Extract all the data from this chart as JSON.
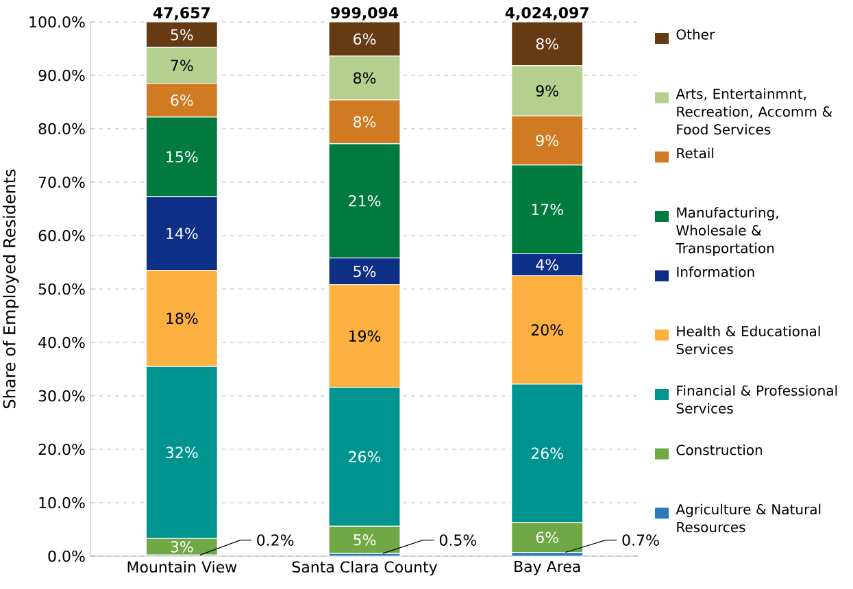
{
  "chart_data": {
    "type": "bar",
    "stacked": true,
    "ylabel": "Share of Employed Residents",
    "categories": [
      "Mountain View",
      "Santa Clara County",
      "Bay Area"
    ],
    "ylim": [
      0,
      100
    ],
    "yticks": [
      {
        "value": 0,
        "label": "0.0%"
      },
      {
        "value": 10,
        "label": "10.0%"
      },
      {
        "value": 20,
        "label": "20.0%"
      },
      {
        "value": 30,
        "label": "30.0%"
      },
      {
        "value": 40,
        "label": "40.0%"
      },
      {
        "value": 50,
        "label": "50.0%"
      },
      {
        "value": 60,
        "label": "60.0%"
      },
      {
        "value": 70,
        "label": "70.0%"
      },
      {
        "value": 80,
        "label": "80.0%"
      },
      {
        "value": 90,
        "label": "90.0%"
      },
      {
        "value": 100,
        "label": "100.0%"
      }
    ],
    "grid": "y",
    "legend": "right",
    "annotations": [
      {
        "text": "47,657",
        "x": "Mountain View",
        "y": 100
      },
      {
        "text": "999,094",
        "x": "Santa Clara County",
        "y": 100
      },
      {
        "text": "4,024,097",
        "x": "Bay Area",
        "y": 100
      }
    ],
    "series": [
      {
        "name": "Agriculture & Natural Resources",
        "color": "#2a7ab8",
        "values": [
          0.2,
          0.5,
          0.7
        ],
        "value_labels": [
          "0.2%",
          "0.5%",
          "0.7%"
        ]
      },
      {
        "name": "Construction",
        "color": "#70a845",
        "values": [
          3.1,
          5.1,
          5.6
        ],
        "value_labels": [
          "3%",
          "5%",
          "6%"
        ]
      },
      {
        "name": "Financial & Professional Services",
        "color": "#009490",
        "values": [
          32.2,
          26.0,
          25.9
        ],
        "value_labels": [
          "32%",
          "26%",
          "26%"
        ]
      },
      {
        "name": "Health & Educational Services",
        "color": "#fbb040",
        "values": [
          18.0,
          19.2,
          20.3
        ],
        "value_labels": [
          "18%",
          "19%",
          "20%"
        ]
      },
      {
        "name": "Information",
        "color": "#0d2f86",
        "values": [
          13.8,
          5.0,
          4.1
        ],
        "value_labels": [
          "14%",
          "5%",
          "4%"
        ]
      },
      {
        "name": "Manufacturing, Wholesale & Transportation",
        "color": "#007a3d",
        "values": [
          14.9,
          21.4,
          16.6
        ],
        "value_labels": [
          "15%",
          "21%",
          "17%"
        ]
      },
      {
        "name": "Retail",
        "color": "#d07a22",
        "values": [
          6.3,
          8.2,
          9.2
        ],
        "value_labels": [
          "6%",
          "8%",
          "9%"
        ]
      },
      {
        "name": "Arts, Entertainmnt, Recreation, Accomm & Food Services",
        "color": "#b5cf8f",
        "values": [
          6.7,
          8.2,
          9.4
        ],
        "value_labels": [
          "7%",
          "8%",
          "9%"
        ]
      },
      {
        "name": "Other",
        "color": "#663a12",
        "values": [
          4.8,
          6.4,
          8.2
        ],
        "value_labels": [
          "5%",
          "6%",
          "8%"
        ]
      }
    ]
  }
}
